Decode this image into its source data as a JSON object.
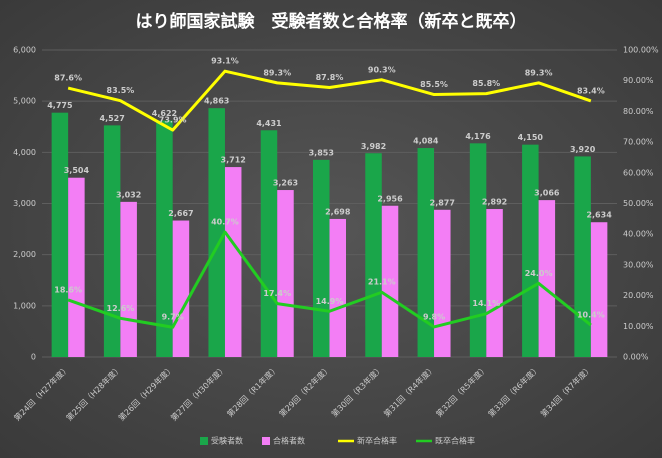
{
  "chart_data": {
    "type": "combo",
    "title": "はり師国家試験　受験者数と合格率（新卒と既卒）",
    "categories": [
      "第24回（H27年度）",
      "第25回（H28年度）",
      "第26回（H29年度）",
      "第27回（H30年度）",
      "第28回（R1年度）",
      "第29回（R2年度）",
      "第30回（R3年度）",
      "第31回（R4年度）",
      "第32回（R5年度）",
      "第33回（R6年度）",
      "第34回（R7年度）"
    ],
    "series": [
      {
        "name": "受験者数",
        "type": "bar",
        "color": "#1aa64a",
        "label_color": "#3fd46a",
        "values": [
          4775,
          4527,
          4622,
          4863,
          4431,
          3853,
          3982,
          4084,
          4176,
          4150,
          3920
        ],
        "value_labels": [
          "4,775",
          "4,527",
          "4,622",
          "4,863",
          "4,431",
          "3,853",
          "3,982",
          "4,084",
          "4,176",
          "4,150",
          "3,920"
        ]
      },
      {
        "name": "合格者数",
        "type": "bar",
        "color": "#f37ef5",
        "label_color": "#f37ef5",
        "values": [
          3504,
          3032,
          2667,
          3712,
          3263,
          2698,
          2956,
          2877,
          2892,
          3066,
          2634
        ],
        "value_labels": [
          "3,504",
          "3,032",
          "2,667",
          "3,712",
          "3,263",
          "2,698",
          "2,956",
          "2,877",
          "2,892",
          "3,066",
          "2,634"
        ]
      },
      {
        "name": "新卒合格率",
        "type": "line",
        "axis": "y2",
        "color": "#ffff00",
        "label_color": "#eeeeee",
        "values": [
          87.6,
          83.5,
          73.9,
          93.1,
          89.3,
          87.8,
          90.3,
          85.5,
          85.8,
          89.3,
          83.4
        ],
        "value_labels": [
          "87.6%",
          "83.5%",
          "73.9%",
          "93.1%",
          "89.3%",
          "87.8%",
          "90.3%",
          "85.5%",
          "85.8%",
          "89.3%",
          "83.4%"
        ]
      },
      {
        "name": "既卒合格率",
        "type": "line",
        "axis": "y2",
        "color": "#22cc22",
        "label_color": "#eeeeee",
        "values": [
          18.6,
          12.6,
          9.7,
          40.7,
          17.4,
          14.9,
          21.1,
          9.8,
          14.1,
          24.0,
          10.4
        ],
        "value_labels": [
          "18.6%",
          "12.6%",
          "9.7%",
          "40.7%",
          "17.4%",
          "14.9%",
          "21.1%",
          "9.8%",
          "14.1%",
          "24.0%",
          "10.4%"
        ]
      }
    ],
    "ylim": [
      0,
      6000
    ],
    "yticks": [
      0,
      {
        "value": 1000,
        "label": "1,000"
      },
      {
        "value": 2000,
        "label": "2,000"
      },
      {
        "value": 3000,
        "label": "3,000"
      },
      {
        "value": 4000,
        "label": "4,000"
      },
      {
        "value": 5000,
        "label": "5,000"
      },
      {
        "value": 6000,
        "label": "6,000"
      }
    ],
    "y2lim": [
      0,
      100
    ],
    "y2ticks": [
      {
        "value": 0,
        "label": "0.00%"
      },
      {
        "value": 10,
        "label": "10.00%"
      },
      {
        "value": 20,
        "label": "20.00%"
      },
      {
        "value": 30,
        "label": "30.00%"
      },
      {
        "value": 40,
        "label": "40.00%"
      },
      {
        "value": 50,
        "label": "50.00%"
      },
      {
        "value": 60,
        "label": "60.00%"
      },
      {
        "value": 70,
        "label": "70.00%"
      },
      {
        "value": 80,
        "label": "80.00%"
      },
      {
        "value": 90,
        "label": "90.00%"
      },
      {
        "value": 100,
        "label": "100.00%"
      }
    ],
    "grid": true,
    "legend": "bottom"
  }
}
